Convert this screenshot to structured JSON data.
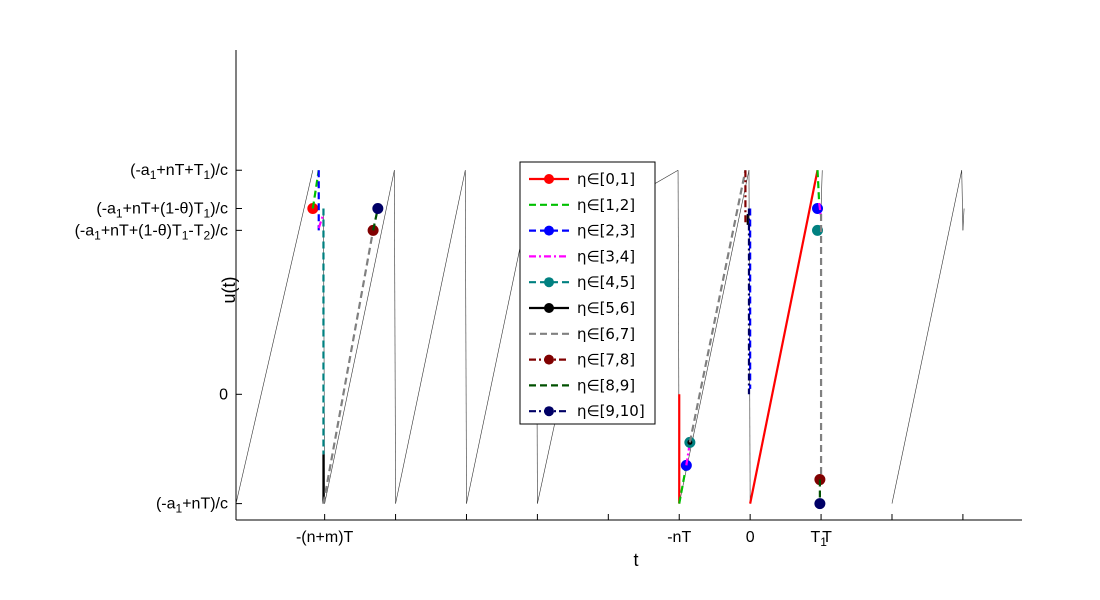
{
  "chart_data": {
    "type": "line",
    "xlabel": "t",
    "ylabel": "u(t)",
    "xlim": [
      -21.75,
      11.5
    ],
    "ylim": [
      -1.15,
      3.15
    ],
    "x_ticks": [
      {
        "x": -18,
        "label": "-(n+m)T"
      },
      {
        "x": -15,
        "label": ""
      },
      {
        "x": -12,
        "label": ""
      },
      {
        "x": -9,
        "label": ""
      },
      {
        "x": -6,
        "label": ""
      },
      {
        "x": -3,
        "label": "-nT"
      },
      {
        "x": 0,
        "label": "0"
      },
      {
        "x": 3,
        "label": ""
      },
      {
        "x": 6,
        "label": ""
      },
      {
        "x": 9,
        "label": ""
      }
    ],
    "x_tick_text": [
      {
        "x": 2.9,
        "label": "T",
        "sub": "1"
      },
      {
        "x": 3.25,
        "label": "T",
        "sub": ""
      }
    ],
    "y_ticks": [
      {
        "y": -1,
        "parts": [
          [
            "(-a",
            ""
          ],
          [
            "1",
            "sub"
          ],
          [
            "+nT)/c",
            ""
          ]
        ]
      },
      {
        "y": 0,
        "parts": [
          [
            "0",
            ""
          ]
        ]
      },
      {
        "y": 1.5,
        "parts": [
          [
            "(-a",
            ""
          ],
          [
            "1",
            "sub"
          ],
          [
            "+nT+(1-θ)T",
            ""
          ],
          [
            "1",
            "sub"
          ],
          [
            "-T",
            ""
          ],
          [
            "2",
            "sub"
          ],
          [
            ")/c",
            ""
          ]
        ]
      },
      {
        "y": 1.7,
        "parts": [
          [
            "(-a",
            ""
          ],
          [
            "1",
            "sub"
          ],
          [
            "+nT+(1-θ)T",
            ""
          ],
          [
            "1",
            "sub"
          ],
          [
            ")/c",
            ""
          ]
        ]
      },
      {
        "y": 2.05,
        "parts": [
          [
            "(-a",
            ""
          ],
          [
            "1",
            "sub"
          ],
          [
            "+nT+T",
            ""
          ],
          [
            "1",
            "sub"
          ],
          [
            ")/c",
            ""
          ]
        ]
      }
    ],
    "background_sawtooth": {
      "segments": [
        [
          [
            -21.75,
            -1.0
          ],
          [
            -18.5,
            2.05
          ]
        ],
        [
          [
            -18.05,
            1.7
          ],
          [
            -18.0,
            -1.0
          ]
        ],
        [
          [
            -18.0,
            -1.0
          ],
          [
            -15.05,
            2.05
          ]
        ],
        [
          [
            -15.05,
            2.05
          ],
          [
            -15.0,
            -1.0
          ]
        ],
        [
          [
            -15.0,
            -1.0
          ],
          [
            -12.05,
            2.05
          ]
        ],
        [
          [
            -12.05,
            2.05
          ],
          [
            -12.0,
            -1.0
          ]
        ],
        [
          [
            -12.0,
            -1.0
          ],
          [
            -9.05,
            2.05
          ]
        ],
        [
          [
            -9.05,
            2.05
          ],
          [
            -9.0,
            -1.0
          ]
        ],
        [
          [
            -9.0,
            -1.0
          ],
          [
            -5.95,
            2.05
          ]
        ],
        [
          [
            -5.95,
            2.05
          ],
          [
            -5.9,
            1.5
          ]
        ],
        [
          [
            -5.9,
            1.5
          ],
          [
            -5.85,
            1.7
          ]
        ],
        [
          [
            -5.85,
            1.7
          ],
          [
            -3.05,
            2.05
          ]
        ],
        [
          [
            -3.05,
            2.05
          ],
          [
            -3.0,
            -1.0
          ]
        ],
        [
          [
            -3.0,
            -1.0
          ],
          [
            -0.05,
            2.05
          ]
        ],
        [
          [
            -0.05,
            2.05
          ],
          [
            0.0,
            -1.0
          ]
        ],
        [
          [
            3.0,
            1.7
          ],
          [
            3.05,
            2.05
          ]
        ],
        [
          [
            6.0,
            -1.0
          ],
          [
            8.95,
            2.05
          ]
        ],
        [
          [
            8.95,
            2.05
          ],
          [
            9.0,
            1.5
          ]
        ],
        [
          [
            9.0,
            1.5
          ],
          [
            9.05,
            1.7
          ]
        ]
      ]
    },
    "series": [
      {
        "name": "η∈[0,1]",
        "color": "#ff0000",
        "dash": "solid",
        "marker": true,
        "segments": [
          {
            "points": [
              [
                -3.0,
                0.0
              ],
              [
                -3.0,
                -1.0
              ]
            ]
          },
          {
            "points": [
              [
                0.0,
                -1.0
              ],
              [
                2.85,
                2.05
              ]
            ]
          },
          {
            "points": [
              [
                -18.5,
                1.7
              ]
            ],
            "marker_at": 0
          }
        ]
      },
      {
        "name": "η∈[1,2]",
        "color": "#00c000",
        "dash": "dash",
        "marker": false,
        "segments": [
          {
            "points": [
              [
                -18.5,
                1.7
              ],
              [
                -18.25,
                2.05
              ]
            ]
          },
          {
            "points": [
              [
                -3.0,
                -1.0
              ],
              [
                -2.7,
                -0.65
              ]
            ]
          },
          {
            "points": [
              [
                2.85,
                2.05
              ],
              [
                2.92,
                1.75
              ]
            ]
          }
        ]
      },
      {
        "name": "η∈[2,3]",
        "color": "#0000ff",
        "dash": "dash",
        "marker": true,
        "segments": [
          {
            "points": [
              [
                -18.25,
                2.05
              ],
              [
                -18.25,
                1.5
              ]
            ]
          },
          {
            "points": [
              [
                0.0,
                1.7
              ],
              [
                0.0,
                0.05
              ]
            ]
          },
          {
            "points": [
              [
                -2.7,
                -0.65
              ]
            ],
            "marker_at": 0
          },
          {
            "points": [
              [
                2.85,
                1.7
              ]
            ],
            "marker_at": 0
          }
        ]
      },
      {
        "name": "η∈[3,4]",
        "color": "#ff00ff",
        "dash": "dashdot",
        "marker": false,
        "segments": [
          {
            "points": [
              [
                -18.25,
                1.52
              ],
              [
                -18.05,
                1.65
              ]
            ]
          },
          {
            "points": [
              [
                -2.7,
                -0.65
              ],
              [
                -2.55,
                -0.44
              ]
            ]
          },
          {
            "points": [
              [
                2.92,
                1.75
              ],
              [
                3.0,
                1.62
              ]
            ]
          }
        ]
      },
      {
        "name": "η∈[4,5]",
        "color": "#008080",
        "dash": "dash",
        "marker": true,
        "segments": [
          {
            "points": [
              [
                -18.05,
                1.7
              ],
              [
                -18.05,
                -0.55
              ]
            ]
          },
          {
            "points": [
              [
                -2.55,
                -0.44
              ]
            ],
            "marker_at": 0
          },
          {
            "points": [
              [
                2.85,
                1.5
              ]
            ],
            "marker_at": 0
          }
        ]
      },
      {
        "name": "η∈[5,6]",
        "color": "#000000",
        "dash": "solid",
        "marker": true,
        "segments": [
          {
            "points": [
              [
                -18.05,
                -0.55
              ],
              [
                -18.05,
                -1.0
              ]
            ]
          },
          {
            "points": [
              [
                -0.1,
                1.55
              ],
              [
                -0.1,
                1.65
              ]
            ]
          },
          {
            "points": [
              [
                -2.55,
                -0.44
              ]
            ],
            "marker_at": 0,
            "marker_size": 2.5
          }
        ]
      },
      {
        "name": "η∈[6,7]",
        "color": "#808080",
        "dash": "dash",
        "marker": false,
        "segments": [
          {
            "points": [
              [
                -18.05,
                -1.0
              ],
              [
                -15.95,
                1.5
              ]
            ]
          },
          {
            "points": [
              [
                -2.55,
                -0.44
              ],
              [
                -0.2,
                2.05
              ]
            ]
          },
          {
            "points": [
              [
                3.0,
                1.65
              ],
              [
                3.0,
                -0.8
              ]
            ]
          }
        ]
      },
      {
        "name": "η∈[7,8]",
        "color": "#800000",
        "dash": "dashdot",
        "marker": true,
        "segments": [
          {
            "points": [
              [
                -0.2,
                2.05
              ],
              [
                -0.2,
                1.55
              ]
            ]
          },
          {
            "points": [
              [
                -15.95,
                1.5
              ]
            ],
            "marker_at": 0
          },
          {
            "points": [
              [
                2.95,
                -0.78
              ]
            ],
            "marker_at": 0
          }
        ]
      },
      {
        "name": "η∈[8,9]",
        "color": "#005000",
        "dash": "dash",
        "marker": false,
        "segments": [
          {
            "points": [
              [
                -15.95,
                1.5
              ],
              [
                -15.75,
                1.7
              ]
            ]
          },
          {
            "points": [
              [
                2.95,
                -0.78
              ],
              [
                2.95,
                -1.0
              ]
            ]
          }
        ]
      },
      {
        "name": "η∈[9,10]",
        "color": "#000066",
        "dash": "dashdot",
        "marker": true,
        "segments": [
          {
            "points": [
              [
                -15.75,
                1.7
              ]
            ],
            "marker_at": 0
          },
          {
            "points": [
              [
                2.95,
                -1.0
              ]
            ],
            "marker_at": 0
          },
          {
            "points": [
              [
                -0.05,
                1.7
              ],
              [
                -0.05,
                0.0
              ]
            ]
          }
        ]
      }
    ],
    "legend_position": "center"
  }
}
